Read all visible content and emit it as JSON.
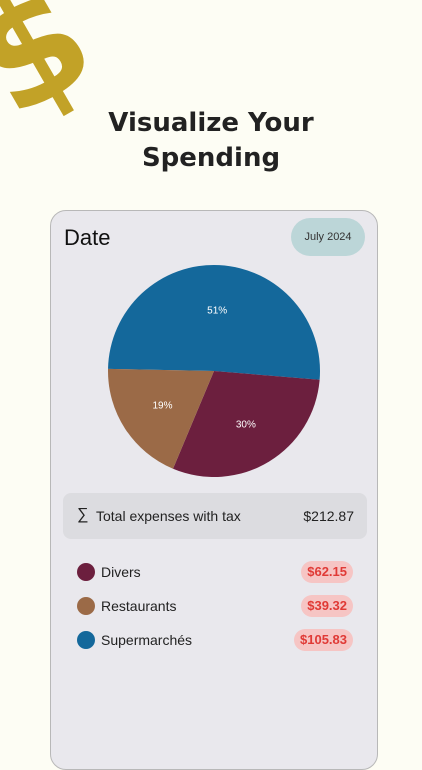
{
  "logo": {
    "glyph": "$",
    "color": "#c2a227"
  },
  "hero": {
    "title_line1": "Visualize Your",
    "title_line2": "Spending"
  },
  "card": {
    "date_label": "Date",
    "month_button": "July 2024"
  },
  "chart_data": {
    "type": "pie",
    "slices": [
      {
        "name": "Supermarchés",
        "value": 51,
        "label": "51%",
        "color": "#14689b"
      },
      {
        "name": "Divers",
        "value": 30,
        "label": "30%",
        "color": "#6c1f3e"
      },
      {
        "name": "Restaurants",
        "value": 19,
        "label": "19%",
        "color": "#9b6a47"
      }
    ]
  },
  "total": {
    "icon": "sigma-icon",
    "label": "Total expenses with tax",
    "value": "$212.87"
  },
  "categories": [
    {
      "name": "Divers",
      "amount": "$62.15",
      "color": "#6c1f3e"
    },
    {
      "name": "Restaurants",
      "amount": "$39.32",
      "color": "#9b6a47"
    },
    {
      "name": "Supermarchés",
      "amount": "$105.83",
      "color": "#14689b"
    }
  ]
}
